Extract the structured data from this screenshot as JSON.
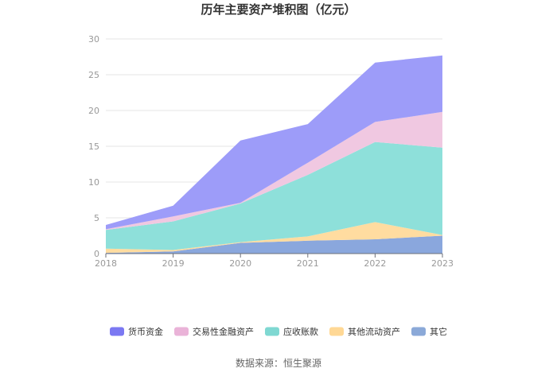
{
  "chart_data": {
    "type": "area",
    "stacked": true,
    "title": "历年主要资产堆积图（亿元）",
    "source": "数据来源：恒生聚源",
    "x": [
      "2018",
      "2019",
      "2020",
      "2021",
      "2022",
      "2023"
    ],
    "ylim": [
      0,
      30
    ],
    "yticks": [
      "0",
      "5",
      "10",
      "15",
      "20",
      "25",
      "30"
    ],
    "grid": true,
    "legend_position": "bottom",
    "series": [
      {
        "name": "其它",
        "values": [
          0.1,
          0.3,
          1.5,
          1.8,
          2.0,
          2.5
        ],
        "color": "#8aa7dd"
      },
      {
        "name": "其他流动资产",
        "values": [
          0.6,
          0.2,
          0.1,
          0.6,
          2.4,
          0.1
        ],
        "color": "#ffdca0"
      },
      {
        "name": "应收账款",
        "values": [
          2.6,
          4.0,
          5.4,
          8.6,
          11.2,
          12.2
        ],
        "color": "#8ee0da"
      },
      {
        "name": "交易性金融资产",
        "values": [
          0.1,
          0.7,
          0.1,
          1.7,
          2.8,
          5.0
        ],
        "color": "#f0c8e1"
      },
      {
        "name": "货币资金",
        "values": [
          0.6,
          1.5,
          8.7,
          5.4,
          8.3,
          7.9
        ],
        "color": "#9d9cf9"
      }
    ],
    "legend": [
      {
        "name": "货币资金",
        "color": "#7b78f2"
      },
      {
        "name": "交易性金融资产",
        "color": "#eab3d8"
      },
      {
        "name": "应收账款",
        "color": "#7fd8d2"
      },
      {
        "name": "其他流动资产",
        "color": "#ffd895"
      },
      {
        "name": "其它",
        "color": "#8ba9d8"
      }
    ]
  }
}
